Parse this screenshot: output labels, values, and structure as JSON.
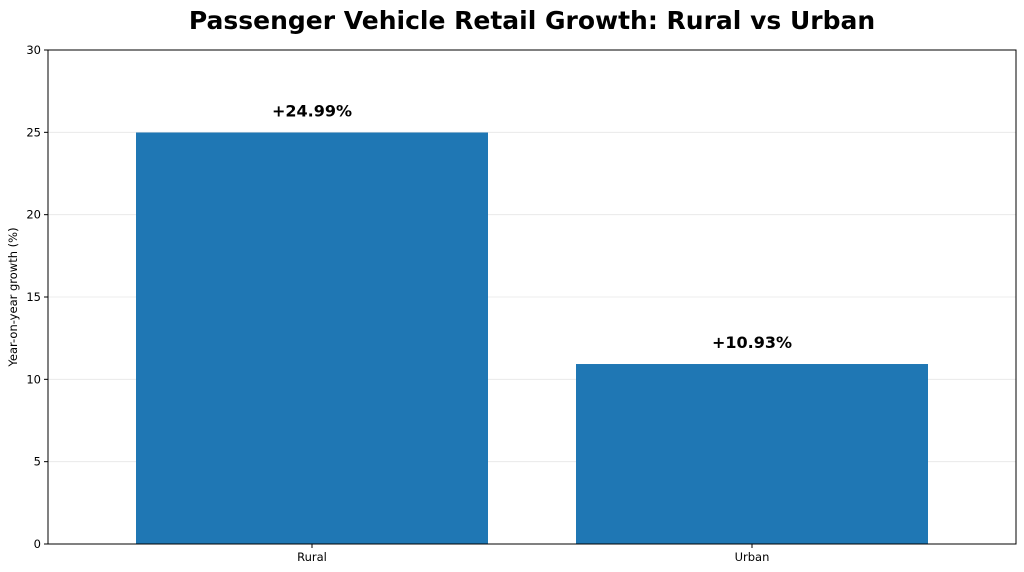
{
  "chart_data": {
    "type": "bar",
    "title": "Passenger Vehicle Retail Growth: Rural vs Urban",
    "xlabel": "",
    "ylabel": "Year-on-year growth (%)",
    "categories": [
      "Rural",
      "Urban"
    ],
    "values": [
      24.99,
      10.93
    ],
    "data_labels": [
      "+24.99%",
      "+10.93%"
    ],
    "ylim": [
      0,
      30
    ],
    "yticks": [
      0,
      5,
      10,
      15,
      20,
      25,
      30
    ],
    "grid": true,
    "legend": false,
    "colors": {
      "bar": "#1f77b4",
      "grid": "#e6e6e6",
      "axis": "#000000"
    }
  }
}
